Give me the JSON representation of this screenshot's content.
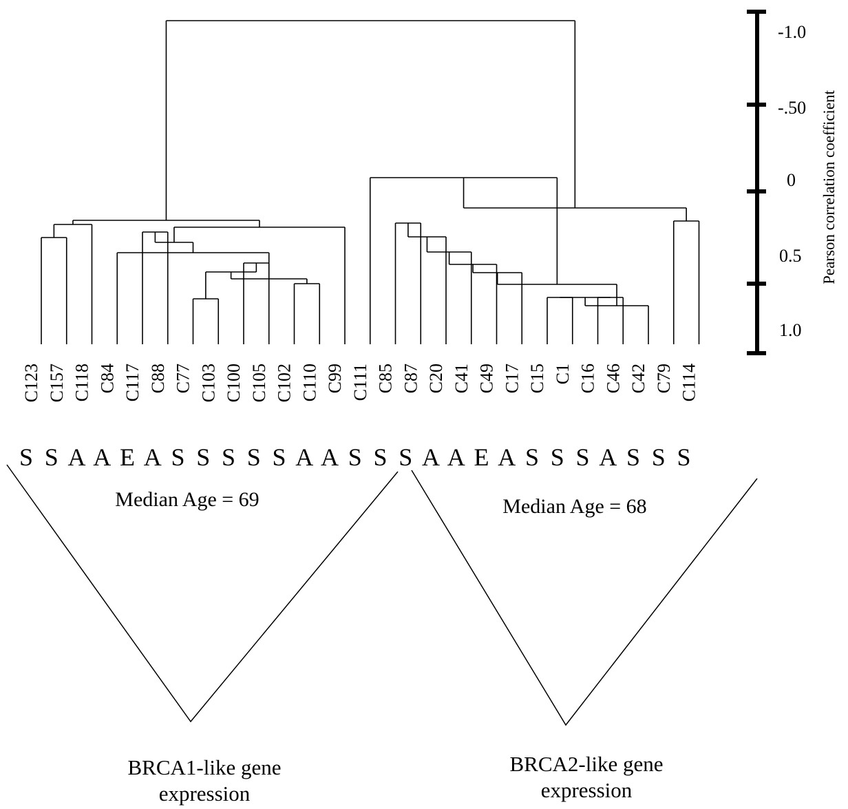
{
  "dendrogram": {
    "samples": [
      "C123",
      "C157",
      "C118",
      "C84",
      "C117",
      "C88",
      "C77",
      "C103",
      "C100",
      "C105",
      "C102",
      "C110",
      "C99",
      "C111",
      "C85",
      "C87",
      "C20",
      "C41",
      "C49",
      "C17",
      "C15",
      "C1",
      "C16",
      "C46",
      "C42",
      "C79",
      "C114"
    ],
    "codes": [
      "S",
      "S",
      "A",
      "A",
      "E",
      "A",
      "S",
      "S",
      "S",
      "S",
      "S",
      "A",
      "A",
      "S",
      "S",
      "S",
      "A",
      "A",
      "E",
      "A",
      "S",
      "S",
      "S",
      "A",
      "S",
      "S",
      "S"
    ],
    "line_color": "#000000"
  },
  "scale": {
    "axis_label": "Pearson correlation coefficient",
    "tick_labels": [
      "-1.0",
      "-.50",
      "0",
      "0.5",
      "1.0"
    ]
  },
  "groups": [
    {
      "median_age": "Median Age = 69",
      "label_line1": "BRCA1-like gene",
      "label_line2": "expression"
    },
    {
      "median_age": "Median Age = 68",
      "label_line1": "BRCA2-like gene",
      "label_line2": "expression"
    }
  ]
}
